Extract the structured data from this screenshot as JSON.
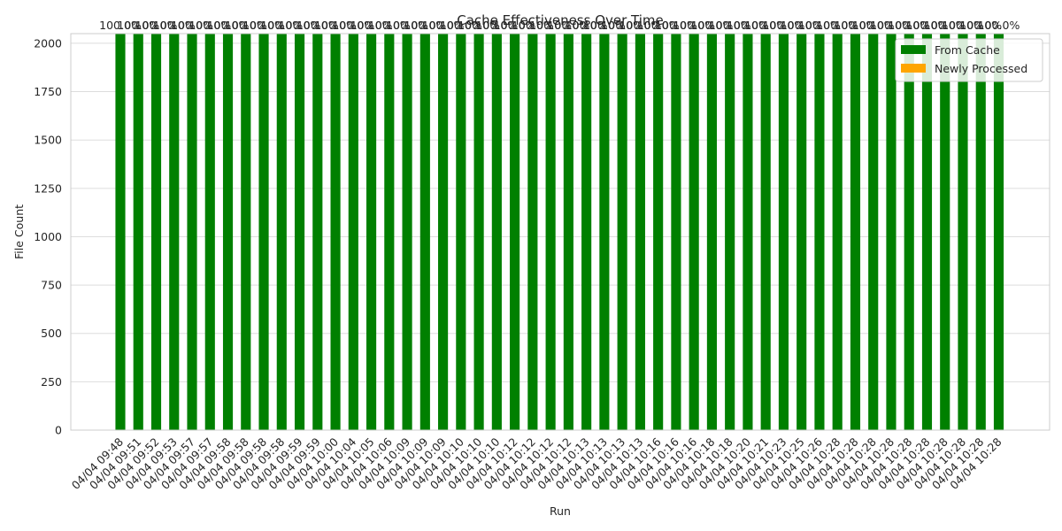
{
  "chart_data": {
    "type": "bar",
    "stacked": true,
    "title": "Cache Effectiveness Over Time",
    "xlabel": "Run",
    "ylabel": "File Count",
    "ylim": [
      0,
      2050
    ],
    "yticks": [
      0,
      250,
      500,
      750,
      1000,
      1250,
      1500,
      1750,
      2000
    ],
    "grid": true,
    "legend_position": "top-right",
    "categories": [
      "04/04 09:48",
      "04/04 09:51",
      "04/04 09:52",
      "04/04 09:53",
      "04/04 09:57",
      "04/04 09:57",
      "04/04 09:58",
      "04/04 09:58",
      "04/04 09:58",
      "04/04 09:58",
      "04/04 09:59",
      "04/04 09:59",
      "04/04 10:00",
      "04/04 10:04",
      "04/04 10:05",
      "04/04 10:06",
      "04/04 10:09",
      "04/04 10:09",
      "04/04 10:09",
      "04/04 10:10",
      "04/04 10:10",
      "04/04 10:10",
      "04/04 10:12",
      "04/04 10:12",
      "04/04 10:12",
      "04/04 10:12",
      "04/04 10:13",
      "04/04 10:13",
      "04/04 10:13",
      "04/04 10:13",
      "04/04 10:16",
      "04/04 10:16",
      "04/04 10:16",
      "04/04 10:18",
      "04/04 10:18",
      "04/04 10:20",
      "04/04 10:21",
      "04/04 10:23",
      "04/04 10:25",
      "04/04 10:26",
      "04/04 10:28",
      "04/04 10:28",
      "04/04 10:28",
      "04/04 10:28",
      "04/04 10:28",
      "04/04 10:28",
      "04/04 10:28",
      "04/04 10:28",
      "04/04 10:28",
      "04/04 10:28"
    ],
    "series": [
      {
        "name": "From Cache",
        "color": "#008000",
        "values": [
          2050,
          2050,
          2050,
          2050,
          2050,
          2050,
          2050,
          2050,
          2050,
          2050,
          2050,
          2050,
          2050,
          2050,
          2050,
          2050,
          2050,
          2050,
          2050,
          2050,
          2050,
          2050,
          2050,
          2050,
          2050,
          2050,
          2050,
          2050,
          2050,
          2050,
          2050,
          2050,
          2050,
          2050,
          2050,
          2050,
          2050,
          2050,
          2050,
          2050,
          2050,
          2050,
          2050,
          2050,
          2050,
          2050,
          2050,
          2050,
          2050,
          2050
        ]
      },
      {
        "name": "Newly Processed",
        "color": "#ffa500",
        "values": [
          0,
          0,
          0,
          0,
          0,
          0,
          0,
          0,
          0,
          0,
          0,
          0,
          0,
          0,
          0,
          0,
          0,
          0,
          0,
          0,
          0,
          0,
          0,
          0,
          0,
          0,
          0,
          0,
          0,
          0,
          0,
          0,
          0,
          0,
          0,
          0,
          0,
          0,
          0,
          0,
          0,
          0,
          0,
          0,
          0,
          0,
          0,
          0,
          0,
          0
        ]
      }
    ],
    "bar_labels": [
      "100.0%",
      "100.0%",
      "100.0%",
      "100.0%",
      "100.0%",
      "100.0%",
      "100.0%",
      "100.0%",
      "100.0%",
      "100.0%",
      "100.0%",
      "100.0%",
      "100.0%",
      "100.0%",
      "100.0%",
      "100.0%",
      "100.0%",
      "100.0%",
      "100.0%",
      "100.0%",
      "100.0%",
      "100.0%",
      "100.0%",
      "100.0%",
      "100.0%",
      "100.0%",
      "100.0%",
      "100.0%",
      "100.0%",
      "100.0%",
      "100.0%",
      "100.0%",
      "100.0%",
      "100.0%",
      "100.0%",
      "100.0%",
      "100.0%",
      "100.0%",
      "100.0%",
      "100.0%",
      "100.0%",
      "100.0%",
      "100.0%",
      "100.0%",
      "100.0%",
      "100.0%",
      "100.0%",
      "100.0%",
      "100.0%",
      "100.0%"
    ]
  }
}
